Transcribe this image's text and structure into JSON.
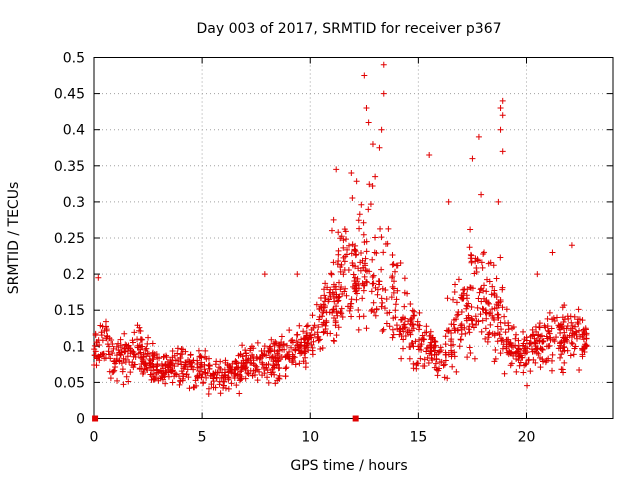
{
  "chart_data": {
    "type": "scatter",
    "title": "Day 003 of 2017, SRMTID for receiver p367",
    "xlabel": "GPS time / hours",
    "ylabel": "SRMTID / TECUs",
    "xlim": [
      0,
      24
    ],
    "ylim": [
      0,
      0.5
    ],
    "x_ticks": [
      0,
      5,
      10,
      15,
      20
    ],
    "x_tick_labels": [
      "0",
      "5",
      "10",
      "15",
      "20"
    ],
    "y_ticks": [
      0,
      0.05,
      0.1,
      0.15,
      0.2,
      0.25,
      0.3,
      0.35,
      0.4,
      0.45,
      0.5
    ],
    "y_tick_labels": [
      "0",
      "0.05",
      "0.1",
      "0.15",
      "0.2",
      "0.25",
      "0.3",
      "0.35",
      "0.4",
      "0.45",
      "0.5"
    ],
    "grid": true,
    "marker": "+",
    "color": "#e00000",
    "series": [
      {
        "name": "SRMTID",
        "profile": [
          {
            "x": 0.0,
            "y": 0.09
          },
          {
            "x": 0.5,
            "y": 0.11
          },
          {
            "x": 1.0,
            "y": 0.08
          },
          {
            "x": 2.0,
            "y": 0.1
          },
          {
            "x": 3.0,
            "y": 0.07
          },
          {
            "x": 4.0,
            "y": 0.075
          },
          {
            "x": 5.0,
            "y": 0.07
          },
          {
            "x": 6.0,
            "y": 0.06
          },
          {
            "x": 7.0,
            "y": 0.075
          },
          {
            "x": 8.0,
            "y": 0.08
          },
          {
            "x": 9.0,
            "y": 0.09
          },
          {
            "x": 10.0,
            "y": 0.11
          },
          {
            "x": 11.0,
            "y": 0.17
          },
          {
            "x": 12.0,
            "y": 0.2
          },
          {
            "x": 13.0,
            "y": 0.2
          },
          {
            "x": 14.0,
            "y": 0.15
          },
          {
            "x": 15.0,
            "y": 0.11
          },
          {
            "x": 16.0,
            "y": 0.08
          },
          {
            "x": 17.0,
            "y": 0.14
          },
          {
            "x": 18.0,
            "y": 0.17
          },
          {
            "x": 19.0,
            "y": 0.11
          },
          {
            "x": 20.0,
            "y": 0.09
          },
          {
            "x": 21.0,
            "y": 0.11
          },
          {
            "x": 22.0,
            "y": 0.12
          },
          {
            "x": 22.8,
            "y": 0.1
          }
        ],
        "highlights": [
          {
            "x": 12.5,
            "y": 0.475
          },
          {
            "x": 13.4,
            "y": 0.49
          },
          {
            "x": 13.4,
            "y": 0.45
          },
          {
            "x": 12.6,
            "y": 0.43
          },
          {
            "x": 12.7,
            "y": 0.41
          },
          {
            "x": 13.3,
            "y": 0.4
          },
          {
            "x": 12.9,
            "y": 0.38
          },
          {
            "x": 13.2,
            "y": 0.375
          },
          {
            "x": 18.9,
            "y": 0.44
          },
          {
            "x": 18.8,
            "y": 0.43
          },
          {
            "x": 18.9,
            "y": 0.42
          },
          {
            "x": 18.8,
            "y": 0.4
          },
          {
            "x": 17.8,
            "y": 0.39
          },
          {
            "x": 18.9,
            "y": 0.37
          },
          {
            "x": 15.5,
            "y": 0.365
          },
          {
            "x": 17.5,
            "y": 0.36
          },
          {
            "x": 11.2,
            "y": 0.345
          },
          {
            "x": 11.9,
            "y": 0.34
          },
          {
            "x": 13.0,
            "y": 0.335
          },
          {
            "x": 17.9,
            "y": 0.31
          },
          {
            "x": 18.7,
            "y": 0.3
          },
          {
            "x": 16.4,
            "y": 0.3
          },
          {
            "x": 7.9,
            "y": 0.2
          },
          {
            "x": 9.4,
            "y": 0.2
          },
          {
            "x": 0.2,
            "y": 0.195
          },
          {
            "x": 20.5,
            "y": 0.2
          },
          {
            "x": 22.1,
            "y": 0.24
          },
          {
            "x": 21.2,
            "y": 0.23
          }
        ],
        "zero_markers": [
          {
            "x": 0.05,
            "y": 0.0
          },
          {
            "x": 12.1,
            "y": 0.0
          }
        ]
      }
    ]
  }
}
